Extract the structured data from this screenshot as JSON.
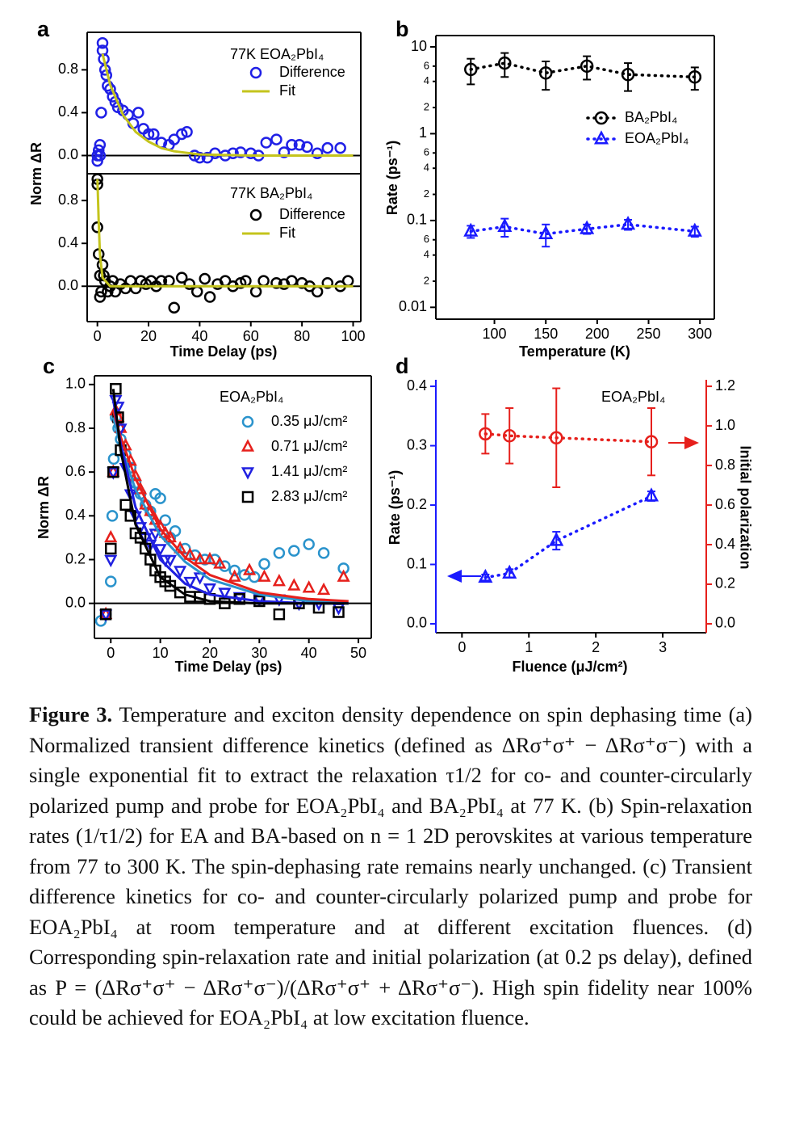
{
  "chart_data": [
    {
      "type": "scatter",
      "panel_label": "a",
      "ylabel": "Norm ΔR",
      "annotation": "77K EOA₂PbI₄",
      "xlim": [
        -4,
        103
      ],
      "ylim": [
        -0.17,
        1.15
      ],
      "yticks": [
        {
          "value": 0,
          "label": "0.0"
        },
        {
          "value": 0.4,
          "label": "0.4"
        },
        {
          "value": 0.8,
          "label": "0.8"
        }
      ],
      "box": true,
      "zero_line": true,
      "series": [
        {
          "name": "Difference",
          "color": "#2020e6",
          "marker": "circle",
          "x": [
            0,
            0,
            0.5,
            1,
            1,
            1.5,
            2,
            2,
            2.5,
            3,
            3.5,
            4,
            5,
            6,
            7,
            8,
            10,
            12,
            14,
            16,
            18,
            20,
            22,
            25,
            28,
            30,
            33,
            35,
            38,
            40,
            43,
            46,
            50,
            53,
            56,
            60,
            63,
            66,
            70,
            73,
            76,
            79,
            82,
            86,
            90,
            95
          ],
          "values": [
            0,
            -0.05,
            0.05,
            0.1,
            0,
            0.4,
            1.05,
            0.98,
            0.9,
            0.8,
            0.75,
            0.65,
            0.62,
            0.55,
            0.5,
            0.45,
            0.42,
            0.38,
            0.3,
            0.4,
            0.25,
            0.2,
            0.2,
            0.12,
            0.1,
            0.15,
            0.2,
            0.22,
            0,
            -0.02,
            -0.02,
            0.02,
            0,
            0.02,
            0.03,
            0.02,
            0,
            0.12,
            0.15,
            0.03,
            0.1,
            0.1,
            0.08,
            0.02,
            0.07,
            0.07
          ]
        },
        {
          "name": "Fit",
          "color": "#c4c41c",
          "line": "solid",
          "x": [
            2,
            5,
            10,
            15,
            20,
            25,
            30,
            40,
            50,
            60,
            80,
            100
          ],
          "values": [
            0.95,
            0.66,
            0.38,
            0.22,
            0.13,
            0.07,
            0.04,
            0.01,
            0.005,
            0,
            0,
            0
          ]
        }
      ]
    },
    {
      "type": "scatter",
      "xlabel": "Time Delay (ps)",
      "annotation": "77K BA₂PbI₄",
      "xlim": [
        -4,
        103
      ],
      "ylim": [
        -0.33,
        1.05
      ],
      "xticks": [
        0,
        20,
        40,
        60,
        80,
        100
      ],
      "yticks": [
        {
          "value": 0,
          "label": "0.0"
        },
        {
          "value": 0.4,
          "label": "0.4"
        },
        {
          "value": 0.8,
          "label": "0.8"
        }
      ],
      "box": true,
      "zero_line": true,
      "series": [
        {
          "name": "Difference",
          "color": "#000000",
          "marker": "circle",
          "x": [
            0,
            0,
            0,
            0.5,
            1,
            1,
            1.5,
            2,
            2.5,
            3,
            4,
            5,
            6,
            7,
            9,
            11,
            13,
            15,
            17,
            19,
            21,
            23,
            25,
            28,
            30,
            33,
            36,
            39,
            42,
            44,
            47,
            50,
            53,
            56,
            58,
            62,
            65,
            70,
            73,
            76,
            80,
            83,
            86,
            90,
            95,
            98
          ],
          "values": [
            1.0,
            0.95,
            0.55,
            0.3,
            0.1,
            -0.1,
            -0.05,
            0.2,
            0.1,
            0.05,
            -0.05,
            0,
            0.05,
            -0.05,
            0.02,
            -0.02,
            0.05,
            -0.02,
            0.05,
            0.02,
            0.05,
            0,
            0.05,
            0.05,
            -0.2,
            0.08,
            0.02,
            -0.05,
            0.07,
            -0.1,
            0.02,
            0.05,
            0,
            0.03,
            0.05,
            -0.05,
            0.05,
            0.03,
            0.02,
            0.05,
            0.03,
            0,
            -0.05,
            0.03,
            0,
            0.05
          ]
        },
        {
          "name": "Fit",
          "color": "#c4c41c",
          "line": "solid",
          "x": [
            0,
            0.5,
            1,
            2,
            5,
            100
          ],
          "values": [
            1.0,
            0.6,
            0.3,
            0.08,
            0,
            0
          ]
        }
      ]
    },
    {
      "type": "line",
      "panel_label": "b",
      "xlabel": "Temperature (K)",
      "ylabel": "Rate (ps⁻¹)",
      "ylog": true,
      "xlim": [
        43,
        314
      ],
      "ylim": [
        0.0073,
        13.5
      ],
      "xticks": [
        100,
        150,
        200,
        250,
        300
      ],
      "yticks": [
        0.01,
        {
          "value": 0.02,
          "label": "2"
        },
        {
          "value": 0.04,
          "label": "4"
        },
        {
          "value": 0.06,
          "label": "6"
        },
        0.1,
        {
          "value": 0.2,
          "label": "2"
        },
        {
          "value": 0.4,
          "label": "4"
        },
        {
          "value": 0.6,
          "label": "6"
        },
        1,
        2,
        4,
        6,
        10
      ],
      "box": true,
      "series": [
        {
          "name": "BA₂PbI₄",
          "color": "#000000",
          "marker": "circle",
          "line": "dotted",
          "x": [
            77,
            110,
            150,
            190,
            230,
            295
          ],
          "values": [
            5.5,
            6.5,
            5.0,
            6.0,
            4.8,
            4.5
          ],
          "errors": [
            1.8,
            2,
            1.8,
            1.8,
            1.7,
            1.3
          ]
        },
        {
          "name": "EOA₂PbI₄",
          "color": "#1a1aff",
          "marker": "triangle",
          "line": "dotted",
          "x": [
            77,
            110,
            150,
            190,
            230,
            295
          ],
          "values": [
            0.075,
            0.085,
            0.07,
            0.08,
            0.09,
            0.075
          ],
          "errors": [
            0.012,
            0.02,
            0.02,
            0.01,
            0.012,
            0.01
          ]
        }
      ]
    },
    {
      "type": "scatter",
      "panel_label": "c",
      "xlabel": "Time Delay (ps)",
      "ylabel": "Norm ΔR",
      "annotation": "EOA₂PbI₄",
      "xlim": [
        -3.3,
        52.6
      ],
      "ylim": [
        -0.16,
        1.04
      ],
      "xticks": [
        0,
        10,
        20,
        30,
        40,
        50
      ],
      "yticks": [
        {
          "value": 0,
          "label": "0.0"
        },
        0.2,
        0.4,
        0.6,
        0.8,
        {
          "value": 1,
          "label": "1.0"
        }
      ],
      "box": true,
      "zero_line": true,
      "series": [
        {
          "name": "0.35 μJ/cm²",
          "color": "#2a93cc",
          "marker": "circle",
          "x": [
            -2,
            -1,
            0,
            0.3,
            0.6,
            1,
            1.5,
            2,
            3,
            4,
            5,
            6,
            7,
            8,
            9,
            10,
            11,
            12,
            13,
            15,
            17,
            19,
            21,
            23,
            25,
            27,
            29,
            31,
            34,
            37,
            40,
            43,
            47
          ],
          "values": [
            -0.08,
            -0.05,
            0.1,
            0.4,
            0.66,
            0.85,
            0.8,
            0.75,
            0.68,
            0.62,
            0.55,
            0.5,
            0.45,
            0.42,
            0.5,
            0.48,
            0.38,
            0.3,
            0.33,
            0.25,
            0.22,
            0.2,
            0.2,
            0.17,
            0.15,
            0.13,
            0.12,
            0.18,
            0.23,
            0.24,
            0.27,
            0.23,
            0.16
          ]
        },
        {
          "name": "0.71 μJ/cm²",
          "color": "#e6201c",
          "marker": "triangle",
          "x": [
            -1,
            0,
            0.5,
            1,
            1.5,
            2,
            3,
            4,
            5,
            6,
            7,
            8,
            9,
            10,
            11,
            12,
            14,
            16,
            18,
            20,
            22,
            25,
            28,
            31,
            34,
            37,
            40,
            43,
            47
          ],
          "values": [
            -0.05,
            0.3,
            0.6,
            0.88,
            0.85,
            0.8,
            0.72,
            0.65,
            0.58,
            0.52,
            0.45,
            0.42,
            0.38,
            0.35,
            0.32,
            0.3,
            0.25,
            0.22,
            0.2,
            0.2,
            0.18,
            0.12,
            0.15,
            0.12,
            0.1,
            0.08,
            0.07,
            0.06,
            0.12
          ]
        },
        {
          "name": "1.41 μJ/cm²",
          "color": "#2020e0",
          "marker": "triangle-down",
          "x": [
            -1,
            0,
            0.5,
            1,
            1.5,
            2,
            3,
            4,
            5,
            6,
            7,
            8,
            9,
            10,
            11,
            12,
            14,
            16,
            18,
            20,
            23,
            26,
            30,
            34,
            38,
            42,
            46
          ],
          "values": [
            -0.05,
            0.2,
            0.6,
            0.93,
            0.9,
            0.8,
            0.62,
            0.5,
            0.4,
            0.35,
            0.3,
            0.27,
            0.32,
            0.25,
            0.2,
            0.2,
            0.15,
            0.1,
            0.12,
            0.07,
            0.05,
            0.03,
            0.02,
            0.02,
            0,
            0,
            -0.02
          ]
        },
        {
          "name": "2.83 μJ/cm²",
          "color": "#000000",
          "marker": "square",
          "x": [
            -1,
            0,
            0.5,
            1,
            1.5,
            2,
            3,
            4,
            5,
            6,
            7,
            8,
            9,
            10,
            11,
            12,
            14,
            16,
            18,
            20,
            23,
            26,
            30,
            34,
            38,
            42,
            46
          ],
          "values": [
            -0.05,
            0.25,
            0.6,
            0.98,
            0.85,
            0.7,
            0.45,
            0.4,
            0.32,
            0.3,
            0.25,
            0.2,
            0.15,
            0.12,
            0.1,
            0.08,
            0.05,
            0.03,
            0.03,
            0.02,
            0,
            0.02,
            0.01,
            -0.05,
            0,
            -0.02,
            -0.04
          ]
        },
        {
          "color": "#2a93cc",
          "line": "solid",
          "x": [
            0.5,
            2,
            5,
            10,
            15,
            20,
            30,
            40,
            48
          ],
          "values": [
            0.85,
            0.72,
            0.52,
            0.31,
            0.19,
            0.11,
            0.04,
            0.01,
            0
          ]
        },
        {
          "color": "#e6201c",
          "line": "solid",
          "x": [
            0.5,
            2,
            5,
            10,
            15,
            20,
            30,
            40,
            48
          ],
          "values": [
            0.88,
            0.76,
            0.57,
            0.34,
            0.21,
            0.13,
            0.05,
            0.02,
            0.01
          ]
        },
        {
          "color": "#2020e0",
          "line": "solid",
          "x": [
            0.5,
            2,
            5,
            10,
            15,
            20,
            30,
            40,
            48
          ],
          "values": [
            0.93,
            0.73,
            0.44,
            0.2,
            0.09,
            0.04,
            0.01,
            0,
            0
          ]
        },
        {
          "color": "#000000",
          "line": "solid",
          "x": [
            0.5,
            2,
            5,
            10,
            15,
            20,
            30,
            40,
            48
          ],
          "values": [
            0.98,
            0.7,
            0.36,
            0.12,
            0.04,
            0.01,
            0,
            0,
            0
          ]
        }
      ]
    },
    {
      "type": "line",
      "panel_label": "d",
      "xlabel": "Fluence (μJ/cm²)",
      "ylabel": "Rate (ps⁻¹)",
      "y2label": "Initial polarization",
      "annotation": "EOA₂PbI₄",
      "xlim": [
        -0.39,
        3.65
      ],
      "ylim": [
        -0.015,
        0.411
      ],
      "y2lim": [
        -0.045,
        1.233
      ],
      "xticks": [
        0,
        1,
        2,
        3
      ],
      "yticks": [
        {
          "value": 0,
          "label": "0.0"
        },
        0.1,
        0.2,
        0.3,
        0.4
      ],
      "y2ticks": [
        {
          "value": 0,
          "label": "0.0"
        },
        0.2,
        0.4,
        0.6,
        0.8,
        {
          "value": 1,
          "label": "1.0"
        },
        1.2
      ],
      "box": false,
      "yaxis_color": "#1a1aff",
      "y2axis_color": "#e6201c",
      "series": [
        {
          "color": "#1a1aff",
          "marker": "triangle",
          "line": "dotted",
          "x": [
            0.35,
            0.71,
            1.41,
            2.83
          ],
          "values": [
            0.078,
            0.085,
            0.14,
            0.215
          ],
          "errors": [
            0.005,
            0.007,
            0.015,
            0.008
          ]
        },
        {
          "color": "#e6201c",
          "marker": "circle",
          "line": "dotted",
          "axis": "y2",
          "x": [
            0.35,
            0.71,
            1.41,
            2.83
          ],
          "values": [
            0.96,
            0.95,
            0.94,
            0.92
          ],
          "errors": [
            0.1,
            0.14,
            0.25,
            0.17
          ]
        }
      ]
    }
  ],
  "caption": {
    "label": "Figure 3.",
    "text": "Temperature and exciton density dependence on spin dephasing time (a) Normalized transient difference kinetics (defined as ΔRσ⁺σ⁺ − ΔRσ⁺σ⁻) with a single exponential fit to extract the relaxation τ1/2 for co- and counter-circularly polarized pump and probe for EOA₂PbI₄ and BA₂PbI₄ at 77 K. (b) Spin-relaxation rates (1/τ1/2) for EA and BA-based on n = 1 2D perovskites at various temperature from 77 to 300 K. The spin-dephasing rate remains nearly unchanged. (c) Transient difference kinetics for co- and counter-circularly polarized pump and probe for EOA₂PbI₄ at room temperature and at different excitation fluences. (d) Corresponding spin-relaxation rate and initial polarization (at 0.2 ps delay), defined as P = (ΔRσ⁺σ⁺ − ΔRσ⁺σ⁻)/(ΔRσ⁺σ⁺ + ΔRσ⁺σ⁻). High spin fidelity near 100% could be achieved for EOA₂PbI₄ at low excitation fluence."
  }
}
